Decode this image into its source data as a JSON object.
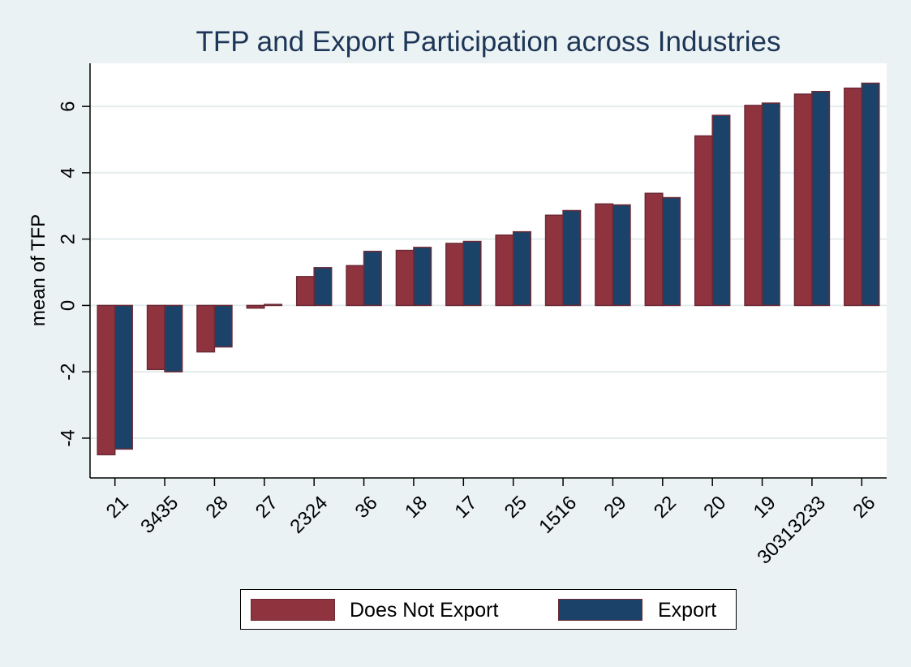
{
  "chart_data": {
    "type": "bar",
    "title": "TFP and Export Participation across Industries",
    "xlabel": "",
    "ylabel": "mean of TFP",
    "categories": [
      "21",
      "3435",
      "28",
      "27",
      "2324",
      "36",
      "18",
      "17",
      "25",
      "1516",
      "29",
      "22",
      "20",
      "19",
      "30313233",
      "26"
    ],
    "series": [
      {
        "name": "Does Not Export",
        "color": "#8f343f",
        "values": [
          -4.5,
          -1.93,
          -1.4,
          -0.08,
          0.87,
          1.2,
          1.66,
          1.87,
          2.12,
          2.72,
          3.06,
          3.38,
          5.11,
          6.03,
          6.37,
          6.55
        ]
      },
      {
        "name": "Export",
        "color": "#1b4369",
        "values": [
          -4.33,
          -2.0,
          -1.25,
          0.03,
          1.14,
          1.63,
          1.75,
          1.93,
          2.22,
          2.86,
          3.03,
          3.25,
          5.73,
          6.1,
          6.45,
          6.7
        ]
      }
    ],
    "ylim": [
      -5.2,
      7.3
    ],
    "yticks": [
      -4,
      -2,
      0,
      2,
      4,
      6
    ],
    "ytick_labels": [
      "-4",
      "-2",
      "0",
      "2",
      "4",
      "6"
    ],
    "grid": true,
    "legend": "bottom",
    "bar_outline_color": "#6b2a36"
  }
}
